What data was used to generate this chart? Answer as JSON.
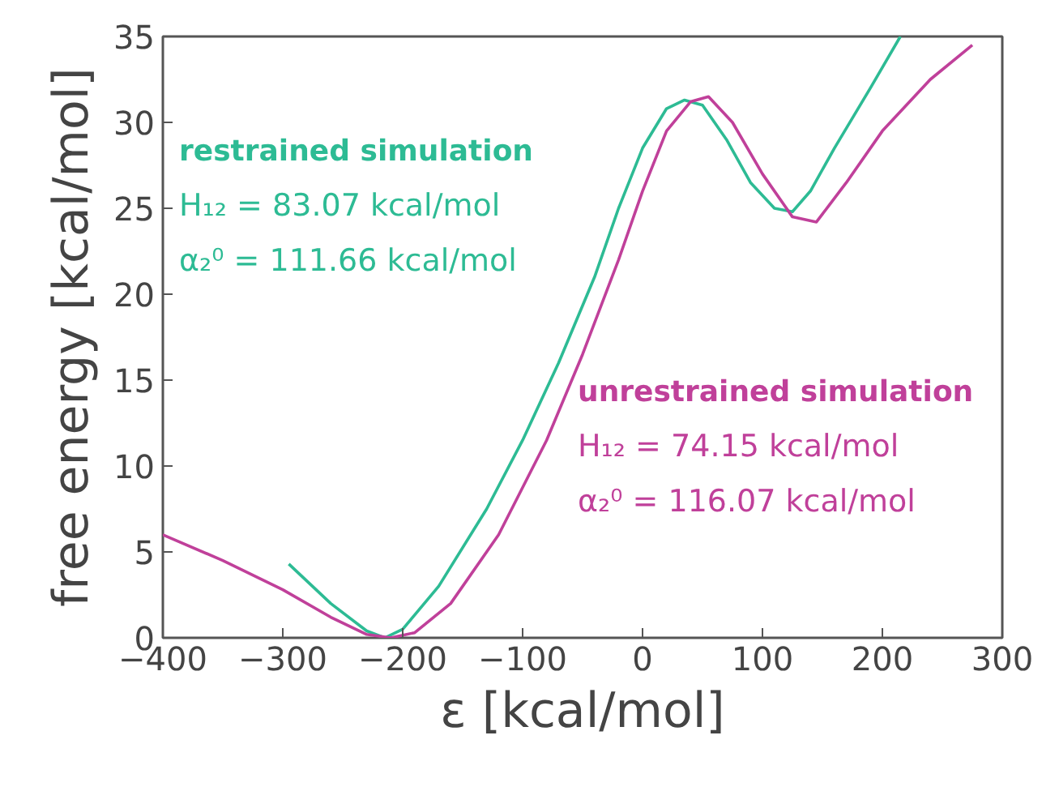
{
  "chart_data": {
    "type": "line",
    "xlabel": "ε [kcal/mol]",
    "ylabel": "free energy [kcal/mol]",
    "xlim": [
      -400,
      300
    ],
    "ylim": [
      0,
      35
    ],
    "xticks": [
      -400,
      -300,
      -200,
      -100,
      0,
      100,
      200,
      300
    ],
    "yticks": [
      0,
      5,
      10,
      15,
      20,
      25,
      30,
      35
    ],
    "grid": false,
    "marker": "none",
    "line_style": "solid",
    "series": [
      {
        "name": "restrained simulation",
        "color": "#2dbb94",
        "x": [
          -295,
          -260,
          -230,
          -215,
          -200,
          -170,
          -130,
          -100,
          -70,
          -40,
          -20,
          0,
          20,
          35,
          50,
          70,
          90,
          110,
          125,
          140,
          160,
          190,
          215
        ],
        "values": [
          4.3,
          2,
          0.4,
          0,
          0.5,
          3,
          7.5,
          11.5,
          16,
          21,
          25,
          28.5,
          30.8,
          31.3,
          31,
          29,
          26.5,
          25,
          24.8,
          26,
          28.5,
          32,
          35
        ]
      },
      {
        "name": "unrestrained simulation",
        "color": "#c0409a",
        "x": [
          -400,
          -350,
          -300,
          -260,
          -230,
          -210,
          -190,
          -160,
          -120,
          -80,
          -50,
          -20,
          0,
          20,
          40,
          55,
          75,
          100,
          125,
          145,
          170,
          200,
          240,
          275
        ],
        "values": [
          6,
          4.5,
          2.8,
          1.2,
          0.2,
          0,
          0.3,
          2,
          6,
          11.5,
          16.5,
          22,
          26,
          29.5,
          31.2,
          31.5,
          30,
          27,
          24.5,
          24.2,
          26.5,
          29.5,
          32.5,
          34.5
        ]
      }
    ],
    "annotations": [
      "H₁₂ = 83.07 kcal/mol",
      "α₂⁰ = 111.66 kcal/mol",
      "H₁₂ = 74.15 kcal/mol",
      "α₂⁰ = 116.07 kcal/mol"
    ]
  }
}
